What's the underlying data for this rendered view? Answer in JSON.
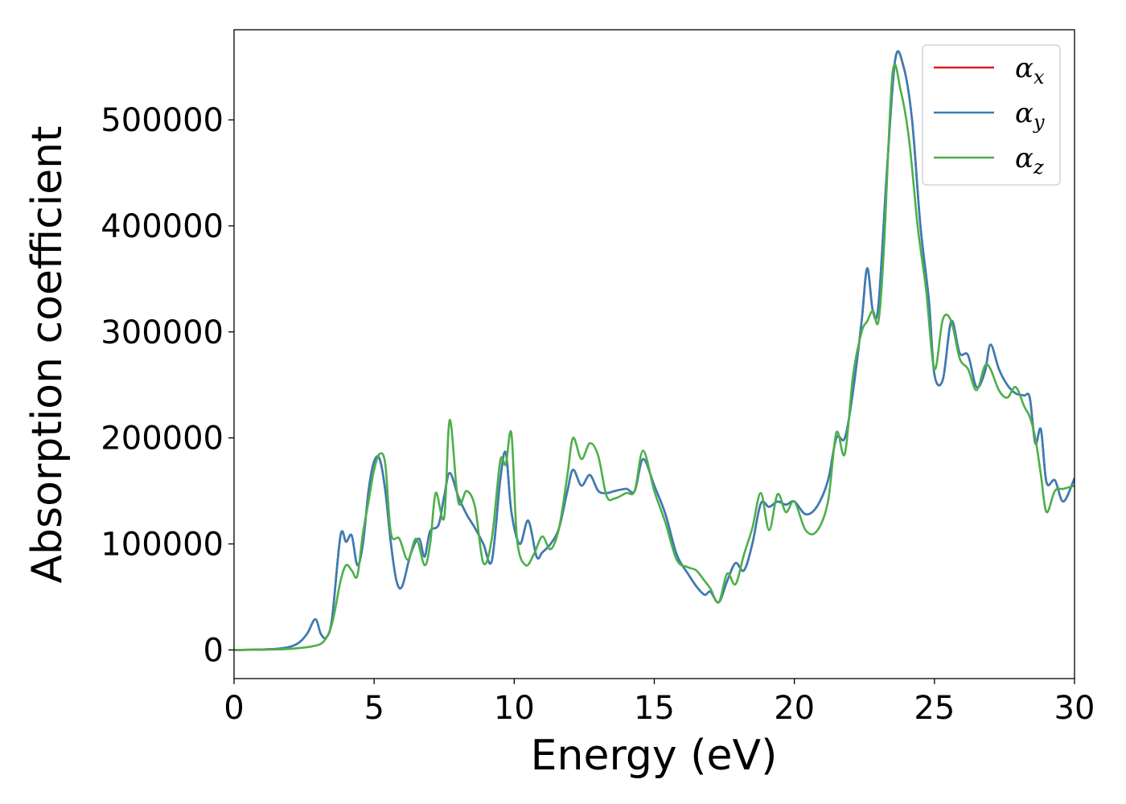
{
  "chart_data": {
    "type": "line",
    "title": "",
    "xlabel": "Energy (eV)",
    "ylabel": "Absorption coefficient",
    "xlim": [
      0,
      30
    ],
    "ylim": [
      -27000,
      585000
    ],
    "x_ticks": [
      0,
      5,
      10,
      15,
      20,
      25,
      30
    ],
    "y_ticks": [
      0,
      100000,
      200000,
      300000,
      400000,
      500000
    ],
    "grid": false,
    "legend": {
      "position": "top-right",
      "entries": [
        {
          "symbol": "α",
          "sub": "x",
          "color": "#e41a1c"
        },
        {
          "symbol": "α",
          "sub": "y",
          "color": "#377eb8"
        },
        {
          "symbol": "α",
          "sub": "z",
          "color": "#4daf4a"
        }
      ]
    },
    "series": [
      {
        "color": "#e41a1c",
        "x": [
          0,
          1.5,
          2.2,
          2.6,
          2.9,
          3.1,
          3.3,
          3.5,
          3.8,
          4.0,
          4.2,
          4.4,
          4.6,
          4.8,
          5.0,
          5.2,
          5.4,
          5.6,
          5.8,
          6.0,
          6.3,
          6.6,
          6.8,
          7.0,
          7.3,
          7.5,
          7.7,
          8.0,
          8.3,
          8.6,
          8.9,
          9.2,
          9.5,
          9.7,
          9.9,
          10.2,
          10.5,
          10.8,
          11.0,
          11.3,
          11.6,
          11.9,
          12.1,
          12.4,
          12.7,
          13.0,
          13.3,
          13.6,
          14.0,
          14.3,
          14.6,
          15.0,
          15.4,
          15.8,
          16.2,
          16.5,
          16.8,
          17.0,
          17.3,
          17.6,
          17.9,
          18.2,
          18.5,
          18.8,
          19.1,
          19.4,
          19.7,
          20.0,
          20.4,
          20.8,
          21.2,
          21.5,
          21.8,
          22.1,
          22.4,
          22.6,
          22.8,
          23.0,
          23.3,
          23.6,
          23.9,
          24.2,
          24.5,
          24.8,
          25.0,
          25.3,
          25.6,
          25.9,
          26.2,
          26.5,
          26.8,
          27.0,
          27.3,
          27.6,
          27.9,
          28.2,
          28.4,
          28.6,
          28.8,
          29.0,
          29.3,
          29.6,
          30.0
        ],
        "y": [
          0,
          1000,
          5000,
          15000,
          29000,
          15000,
          12000,
          30000,
          108000,
          102000,
          108000,
          80000,
          100000,
          150000,
          178000,
          180000,
          150000,
          100000,
          65000,
          60000,
          90000,
          105000,
          88000,
          112000,
          118000,
          145000,
          167000,
          145000,
          128000,
          115000,
          100000,
          84000,
          160000,
          186000,
          130000,
          100000,
          122000,
          88000,
          92000,
          100000,
          115000,
          150000,
          170000,
          155000,
          165000,
          150000,
          148000,
          150000,
          152000,
          150000,
          180000,
          155000,
          128000,
          90000,
          72000,
          60000,
          52000,
          55000,
          45000,
          65000,
          82000,
          75000,
          100000,
          138000,
          135000,
          140000,
          137000,
          140000,
          128000,
          135000,
          160000,
          200000,
          200000,
          245000,
          310000,
          360000,
          320000,
          325000,
          450000,
          557000,
          550000,
          500000,
          400000,
          330000,
          260000,
          255000,
          310000,
          280000,
          278000,
          248000,
          262000,
          288000,
          265000,
          250000,
          242000,
          240000,
          238000,
          195000,
          208000,
          158000,
          160000,
          140000,
          162000
        ]
      },
      {
        "color": "#377eb8",
        "x": [
          0,
          1.5,
          2.2,
          2.6,
          2.9,
          3.1,
          3.3,
          3.5,
          3.8,
          4.0,
          4.2,
          4.4,
          4.6,
          4.8,
          5.0,
          5.2,
          5.4,
          5.6,
          5.8,
          6.0,
          6.3,
          6.6,
          6.8,
          7.0,
          7.3,
          7.5,
          7.7,
          8.0,
          8.3,
          8.6,
          8.9,
          9.2,
          9.5,
          9.7,
          9.9,
          10.2,
          10.5,
          10.8,
          11.0,
          11.3,
          11.6,
          11.9,
          12.1,
          12.4,
          12.7,
          13.0,
          13.3,
          13.6,
          14.0,
          14.3,
          14.6,
          15.0,
          15.4,
          15.8,
          16.2,
          16.5,
          16.8,
          17.0,
          17.3,
          17.6,
          17.9,
          18.2,
          18.5,
          18.8,
          19.1,
          19.4,
          19.7,
          20.0,
          20.4,
          20.8,
          21.2,
          21.5,
          21.8,
          22.1,
          22.4,
          22.6,
          22.8,
          23.0,
          23.3,
          23.6,
          23.9,
          24.2,
          24.5,
          24.8,
          25.0,
          25.3,
          25.6,
          25.9,
          26.2,
          26.5,
          26.8,
          27.0,
          27.3,
          27.6,
          27.9,
          28.2,
          28.4,
          28.6,
          28.8,
          29.0,
          29.3,
          29.6,
          30.0
        ],
        "y": [
          0,
          1000,
          5000,
          15000,
          29000,
          15000,
          12000,
          30000,
          108000,
          102000,
          108000,
          80000,
          100000,
          150000,
          178000,
          180000,
          150000,
          100000,
          65000,
          60000,
          90000,
          105000,
          88000,
          112000,
          118000,
          145000,
          167000,
          145000,
          128000,
          115000,
          100000,
          84000,
          160000,
          186000,
          130000,
          100000,
          122000,
          88000,
          92000,
          100000,
          115000,
          150000,
          170000,
          155000,
          165000,
          150000,
          148000,
          150000,
          152000,
          150000,
          180000,
          155000,
          128000,
          90000,
          72000,
          60000,
          52000,
          55000,
          45000,
          65000,
          82000,
          75000,
          100000,
          138000,
          135000,
          140000,
          137000,
          140000,
          128000,
          135000,
          160000,
          200000,
          200000,
          245000,
          310000,
          360000,
          320000,
          325000,
          450000,
          557000,
          550000,
          500000,
          400000,
          330000,
          260000,
          255000,
          310000,
          280000,
          278000,
          248000,
          262000,
          288000,
          265000,
          250000,
          242000,
          240000,
          238000,
          195000,
          208000,
          158000,
          160000,
          140000,
          162000
        ]
      },
      {
        "color": "#4daf4a",
        "x": [
          0,
          1.5,
          2.2,
          2.8,
          3.2,
          3.5,
          3.8,
          4.0,
          4.2,
          4.4,
          4.6,
          4.8,
          5.0,
          5.2,
          5.4,
          5.6,
          5.9,
          6.2,
          6.5,
          6.8,
          7.0,
          7.2,
          7.5,
          7.7,
          8.0,
          8.3,
          8.6,
          8.9,
          9.2,
          9.5,
          9.7,
          9.9,
          10.1,
          10.4,
          10.7,
          11.0,
          11.3,
          11.6,
          11.9,
          12.1,
          12.4,
          12.7,
          13.0,
          13.3,
          13.6,
          14.0,
          14.3,
          14.6,
          15.0,
          15.4,
          15.8,
          16.2,
          16.5,
          16.8,
          17.0,
          17.3,
          17.6,
          17.9,
          18.2,
          18.5,
          18.8,
          19.1,
          19.4,
          19.7,
          20.0,
          20.4,
          20.8,
          21.2,
          21.5,
          21.8,
          22.1,
          22.4,
          22.6,
          22.8,
          23.0,
          23.2,
          23.5,
          23.8,
          24.1,
          24.4,
          24.7,
          25.0,
          25.3,
          25.6,
          25.9,
          26.2,
          26.5,
          26.8,
          27.0,
          27.3,
          27.6,
          27.9,
          28.2,
          28.4,
          28.6,
          28.8,
          29.0,
          29.3,
          29.6,
          30.0
        ],
        "y": [
          0,
          500,
          1500,
          3500,
          8000,
          25000,
          65000,
          80000,
          75000,
          70000,
          110000,
          140000,
          170000,
          185000,
          175000,
          110000,
          105000,
          85000,
          105000,
          80000,
          100000,
          148000,
          125000,
          217000,
          140000,
          150000,
          135000,
          82000,
          105000,
          178000,
          175000,
          204000,
          105000,
          80000,
          90000,
          107000,
          95000,
          115000,
          165000,
          200000,
          180000,
          195000,
          183000,
          145000,
          143000,
          148000,
          150000,
          188000,
          150000,
          120000,
          85000,
          78000,
          75000,
          65000,
          58000,
          45000,
          72000,
          62000,
          90000,
          115000,
          148000,
          113000,
          147000,
          130000,
          140000,
          113000,
          112000,
          140000,
          205000,
          185000,
          260000,
          300000,
          310000,
          320000,
          310000,
          380000,
          543000,
          527000,
          480000,
          400000,
          340000,
          265000,
          312000,
          310000,
          275000,
          265000,
          245000,
          268000,
          265000,
          245000,
          238000,
          248000,
          230000,
          220000,
          200000,
          165000,
          130000,
          150000,
          152000,
          155000
        ]
      }
    ]
  }
}
